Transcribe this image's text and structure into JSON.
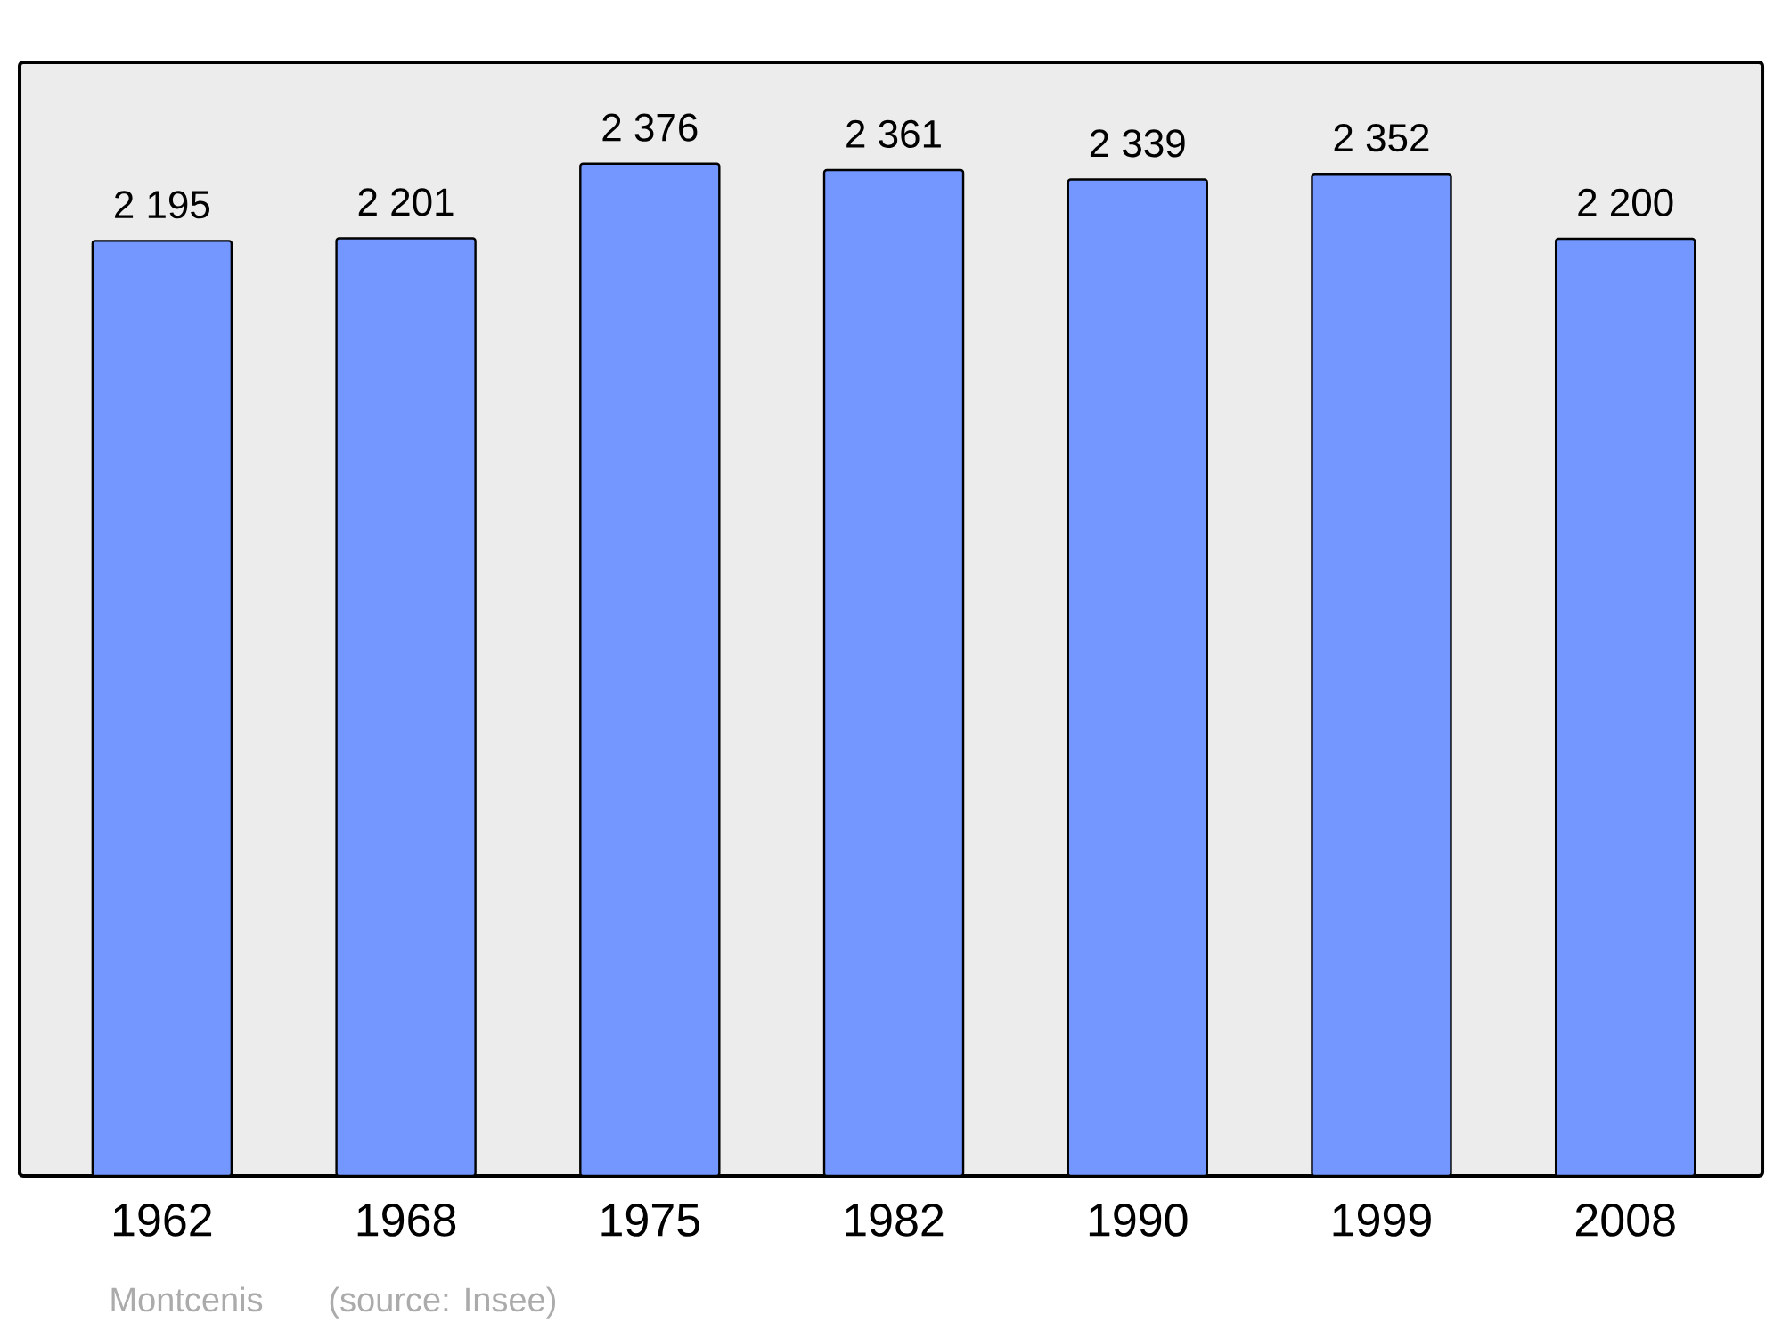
{
  "chart_data": {
    "type": "bar",
    "categories": [
      "1962",
      "1968",
      "1975",
      "1982",
      "1990",
      "1999",
      "2008"
    ],
    "values": [
      2195,
      2201,
      2376,
      2361,
      2339,
      2352,
      2200
    ],
    "value_labels": [
      "2 195",
      "2 201",
      "2 376",
      "2 361",
      "2 339",
      "2 352",
      "2 200"
    ],
    "color": "#7397ff",
    "ylim": [
      0,
      2614
    ],
    "annotations": [
      "Montcenis",
      "(source: Insee)"
    ]
  }
}
